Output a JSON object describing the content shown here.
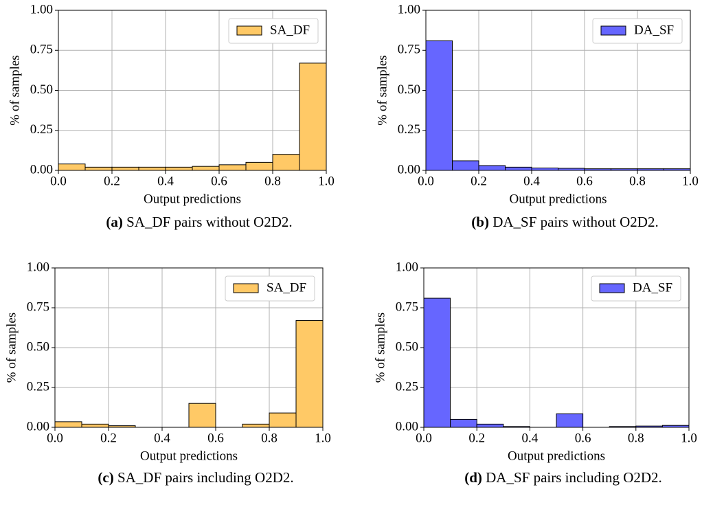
{
  "chart_data": [
    {
      "type": "histogram",
      "xlabel": "Output predictions",
      "ylabel": "% of samples",
      "caption_label": "(a)",
      "caption": "SA_DF pairs without O2D2.",
      "bins": [
        0,
        0.1,
        0.2,
        0.3,
        0.4,
        0.5,
        0.6,
        0.7,
        0.8,
        0.9,
        1.0
      ],
      "series": [
        {
          "name": "SA_DF",
          "color": "#ffc966",
          "values": [
            0.04,
            0.02,
            0.02,
            0.02,
            0.02,
            0.025,
            0.035,
            0.05,
            0.1,
            0.67
          ]
        }
      ],
      "xlim": [
        0,
        1
      ],
      "ylim": [
        0,
        1
      ],
      "xticks": [
        {
          "value": 0,
          "label": "0.0"
        },
        {
          "value": 0.2,
          "label": "0.2"
        },
        {
          "value": 0.4,
          "label": "0.4"
        },
        {
          "value": 0.6,
          "label": "0.6"
        },
        {
          "value": 0.8,
          "label": "0.8"
        },
        {
          "value": 1,
          "label": "1.0"
        }
      ],
      "yticks": [
        {
          "value": 0,
          "label": "0.00"
        },
        {
          "value": 0.25,
          "label": "0.25"
        },
        {
          "value": 0.5,
          "label": "0.50"
        },
        {
          "value": 0.75,
          "label": "0.75"
        },
        {
          "value": 1,
          "label": "1.00"
        }
      ],
      "grid": true,
      "legend": "upper right"
    },
    {
      "type": "histogram",
      "xlabel": "Output predictions",
      "ylabel": "% of samples",
      "caption_label": "(b)",
      "caption": "DA_SF pairs without O2D2.",
      "bins": [
        0,
        0.1,
        0.2,
        0.3,
        0.4,
        0.5,
        0.6,
        0.7,
        0.8,
        0.9,
        1.0
      ],
      "series": [
        {
          "name": "DA_SF",
          "color": "#6666ff",
          "values": [
            0.81,
            0.06,
            0.03,
            0.02,
            0.015,
            0.013,
            0.01,
            0.01,
            0.01,
            0.01
          ]
        }
      ],
      "xlim": [
        0,
        1
      ],
      "ylim": [
        0,
        1
      ],
      "xticks": [
        {
          "value": 0,
          "label": "0.0"
        },
        {
          "value": 0.2,
          "label": "0.2"
        },
        {
          "value": 0.4,
          "label": "0.4"
        },
        {
          "value": 0.6,
          "label": "0.6"
        },
        {
          "value": 0.8,
          "label": "0.8"
        },
        {
          "value": 1,
          "label": "1.0"
        }
      ],
      "yticks": [
        {
          "value": 0,
          "label": "0.00"
        },
        {
          "value": 0.25,
          "label": "0.25"
        },
        {
          "value": 0.5,
          "label": "0.50"
        },
        {
          "value": 0.75,
          "label": "0.75"
        },
        {
          "value": 1,
          "label": "1.00"
        }
      ],
      "grid": true,
      "legend": "upper right"
    },
    {
      "type": "histogram",
      "xlabel": "Output predictions",
      "ylabel": "% of samples",
      "caption_label": "(c)",
      "caption": "SA_DF pairs including O2D2.",
      "bins": [
        0,
        0.1,
        0.2,
        0.3,
        0.4,
        0.5,
        0.6,
        0.7,
        0.8,
        0.9,
        1.0
      ],
      "series": [
        {
          "name": "SA_DF",
          "color": "#ffc966",
          "values": [
            0.035,
            0.02,
            0.01,
            0,
            0,
            0.15,
            0,
            0.02,
            0.09,
            0.67
          ]
        }
      ],
      "xlim": [
        0,
        1
      ],
      "ylim": [
        0,
        1
      ],
      "xticks": [
        {
          "value": 0,
          "label": "0.0"
        },
        {
          "value": 0.2,
          "label": "0.2"
        },
        {
          "value": 0.4,
          "label": "0.4"
        },
        {
          "value": 0.6,
          "label": "0.6"
        },
        {
          "value": 0.8,
          "label": "0.8"
        },
        {
          "value": 1,
          "label": "1.0"
        }
      ],
      "yticks": [
        {
          "value": 0,
          "label": "0.00"
        },
        {
          "value": 0.25,
          "label": "0.25"
        },
        {
          "value": 0.5,
          "label": "0.50"
        },
        {
          "value": 0.75,
          "label": "0.75"
        },
        {
          "value": 1,
          "label": "1.00"
        }
      ],
      "grid": true,
      "legend": "upper right"
    },
    {
      "type": "histogram",
      "xlabel": "Output predictions",
      "ylabel": "% of samples",
      "caption_label": "(d)",
      "caption": "DA_SF pairs including O2D2.",
      "bins": [
        0,
        0.1,
        0.2,
        0.3,
        0.4,
        0.5,
        0.6,
        0.7,
        0.8,
        0.9,
        1.0
      ],
      "series": [
        {
          "name": "DA_SF",
          "color": "#6666ff",
          "values": [
            0.81,
            0.05,
            0.02,
            0.005,
            0,
            0.085,
            0,
            0.005,
            0.008,
            0.012
          ]
        }
      ],
      "xlim": [
        0,
        1
      ],
      "ylim": [
        0,
        1
      ],
      "xticks": [
        {
          "value": 0,
          "label": "0.0"
        },
        {
          "value": 0.2,
          "label": "0.2"
        },
        {
          "value": 0.4,
          "label": "0.4"
        },
        {
          "value": 0.6,
          "label": "0.6"
        },
        {
          "value": 0.8,
          "label": "0.8"
        },
        {
          "value": 1,
          "label": "1.0"
        }
      ],
      "yticks": [
        {
          "value": 0,
          "label": "0.00"
        },
        {
          "value": 0.25,
          "label": "0.25"
        },
        {
          "value": 0.5,
          "label": "0.50"
        },
        {
          "value": 0.75,
          "label": "0.75"
        },
        {
          "value": 1,
          "label": "1.00"
        }
      ],
      "grid": true,
      "legend": "upper right"
    }
  ]
}
